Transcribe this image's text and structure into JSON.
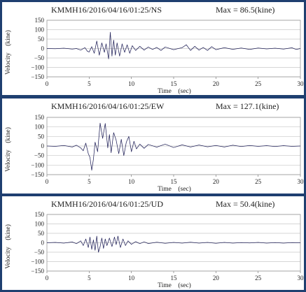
{
  "chart_data": [
    {
      "type": "line",
      "title": "KMMH16/2016/04/16/01:25/NS",
      "annotation": "Max = 86.5(kine)",
      "xlabel": "Time　(sec)",
      "ylabel": "Velocity　(kine)",
      "xlim": [
        0,
        30
      ],
      "ylim": [
        -150,
        150
      ],
      "x_ticks": [
        "0",
        "5",
        "10",
        "15",
        "20",
        "25",
        "30"
      ],
      "y_ticks": [
        "150",
        "100",
        "50",
        "0",
        "−50",
        "−100",
        "−150"
      ],
      "grid": true,
      "line_color": "#23235a",
      "series": [
        {
          "x": [
            0,
            1,
            2,
            3,
            3.5,
            4,
            4.5,
            4.8,
            5,
            5.3,
            5.6,
            5.9,
            6.2,
            6.5,
            6.8,
            7.0,
            7.3,
            7.5,
            7.7,
            7.9,
            8.1,
            8.3,
            8.6,
            8.9,
            9.2,
            9.5,
            9.8,
            10.1,
            10.5,
            11,
            11.5,
            12,
            12.5,
            13,
            13.5,
            14,
            15,
            16,
            16.5,
            17,
            17.5,
            18,
            18.5,
            19,
            19.5,
            20,
            21,
            22,
            23,
            24,
            25,
            26,
            27,
            28,
            29,
            29.5,
            30
          ],
          "y": [
            0,
            -1,
            2,
            -3,
            0,
            -8,
            5,
            -15,
            -18,
            10,
            -25,
            40,
            -35,
            30,
            -20,
            25,
            -55,
            86.5,
            -40,
            45,
            -35,
            30,
            -40,
            25,
            -20,
            20,
            -25,
            15,
            -10,
            12,
            -8,
            8,
            -5,
            6,
            -10,
            8,
            -6,
            5,
            20,
            -10,
            12,
            -8,
            6,
            -10,
            10,
            -6,
            5,
            -4,
            3,
            -5,
            3,
            -2,
            2,
            -3,
            4,
            -5,
            0
          ]
        }
      ]
    },
    {
      "type": "line",
      "title": "KMMH16/2016/04/16/01:25/EW",
      "annotation": "Max = 127.1(kine)",
      "xlabel": "Time　(sec)",
      "ylabel": "Velocity　(kine)",
      "xlim": [
        0,
        30
      ],
      "ylim": [
        -150,
        150
      ],
      "x_ticks": [
        "0",
        "5",
        "10",
        "15",
        "20",
        "25",
        "30"
      ],
      "y_ticks": [
        "150",
        "100",
        "50",
        "0",
        "−50",
        "−100",
        "−150"
      ],
      "grid": true,
      "line_color": "#23235a",
      "series": [
        {
          "x": [
            0,
            1,
            2,
            3,
            3.5,
            4,
            4.3,
            4.6,
            4.9,
            5.1,
            5.3,
            5.5,
            5.7,
            6.0,
            6.3,
            6.6,
            6.9,
            7.2,
            7.4,
            7.6,
            7.9,
            8.2,
            8.5,
            8.8,
            9.1,
            9.4,
            9.7,
            10,
            10.3,
            10.6,
            11,
            11.5,
            12,
            13,
            14,
            15,
            16,
            17,
            18,
            19,
            20,
            21,
            22,
            23,
            24,
            25,
            26,
            27,
            28,
            29,
            30
          ],
          "y": [
            0,
            -2,
            3,
            -5,
            4,
            -10,
            -25,
            15,
            -40,
            -60,
            -127.1,
            -70,
            20,
            -30,
            120,
            40,
            118,
            -10,
            60,
            -35,
            70,
            30,
            -40,
            35,
            -50,
            20,
            50,
            -30,
            25,
            -15,
            10,
            -12,
            8,
            -6,
            10,
            -8,
            6,
            -5,
            5,
            -4,
            3,
            -5,
            4,
            -3,
            3,
            -2,
            2,
            -3,
            2,
            -2,
            0
          ]
        }
      ]
    },
    {
      "type": "line",
      "title": "KMMH16/2016/04/16/01:25/UD",
      "annotation": "Max = 50.4(kine)",
      "xlabel": "Time　(sec)",
      "ylabel": "Velocity　(kine)",
      "xlim": [
        0,
        30
      ],
      "ylim": [
        -150,
        150
      ],
      "x_ticks": [
        "0",
        "5",
        "10",
        "15",
        "20",
        "25",
        "30"
      ],
      "y_ticks": [
        "150",
        "100",
        "50",
        "0",
        "−50",
        "−100",
        "−150"
      ],
      "grid": true,
      "line_color": "#23235a",
      "series": [
        {
          "x": [
            0,
            1,
            2,
            3,
            3.5,
            4,
            4.3,
            4.6,
            4.9,
            5.1,
            5.3,
            5.5,
            5.7,
            5.9,
            6.1,
            6.3,
            6.5,
            6.7,
            6.9,
            7.1,
            7.4,
            7.7,
            8.0,
            8.2,
            8.4,
            8.7,
            9.0,
            9.3,
            9.6,
            10,
            10.5,
            11,
            11.5,
            12,
            13,
            14,
            15,
            16,
            17,
            18,
            19,
            20,
            21,
            22,
            23,
            24,
            25,
            26,
            27,
            28,
            29,
            30
          ],
          "y": [
            0,
            2,
            -2,
            4,
            -5,
            10,
            -15,
            20,
            -25,
            30,
            -35,
            15,
            -40,
            35,
            -50.4,
            -20,
            25,
            -30,
            20,
            -15,
            25,
            -20,
            30,
            -10,
            35,
            -25,
            20,
            -15,
            10,
            -8,
            6,
            -5,
            5,
            -4,
            3,
            -3,
            2,
            -2,
            3,
            -2,
            2,
            -3,
            2,
            -2,
            1,
            -1,
            2,
            -2,
            1,
            -2,
            1,
            0
          ]
        }
      ]
    }
  ]
}
